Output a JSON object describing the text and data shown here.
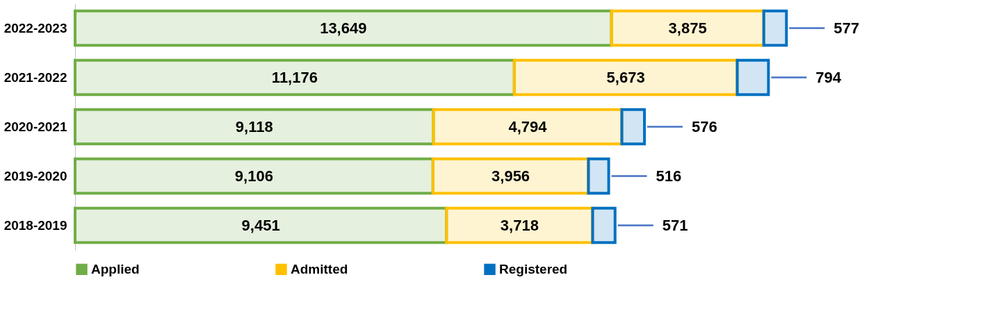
{
  "chart_data": {
    "type": "bar",
    "orientation": "horizontal",
    "stacked": true,
    "legend": "bottom",
    "grid": false,
    "categories": [
      "2022-2023",
      "2021-2022",
      "2020-2021",
      "2019-2020",
      "2018-2019"
    ],
    "series": [
      {
        "name": "Applied",
        "color": "#70ad47",
        "values": [
          13649,
          11176,
          9118,
          9106,
          9451
        ],
        "value_labels": [
          "13,649",
          "11,176",
          "9,118",
          "9,106",
          "9,451"
        ]
      },
      {
        "name": "Admitted",
        "color": "#ffc000",
        "values": [
          3875,
          5673,
          4794,
          3956,
          3718
        ],
        "value_labels": [
          "3,875",
          "5,673",
          "4,794",
          "3,956",
          "3,718"
        ]
      },
      {
        "name": "Registered",
        "color": "#0070c0",
        "values": [
          577,
          794,
          576,
          516,
          571
        ],
        "value_labels": [
          "577",
          "794",
          "576",
          "516",
          "571"
        ]
      }
    ]
  }
}
